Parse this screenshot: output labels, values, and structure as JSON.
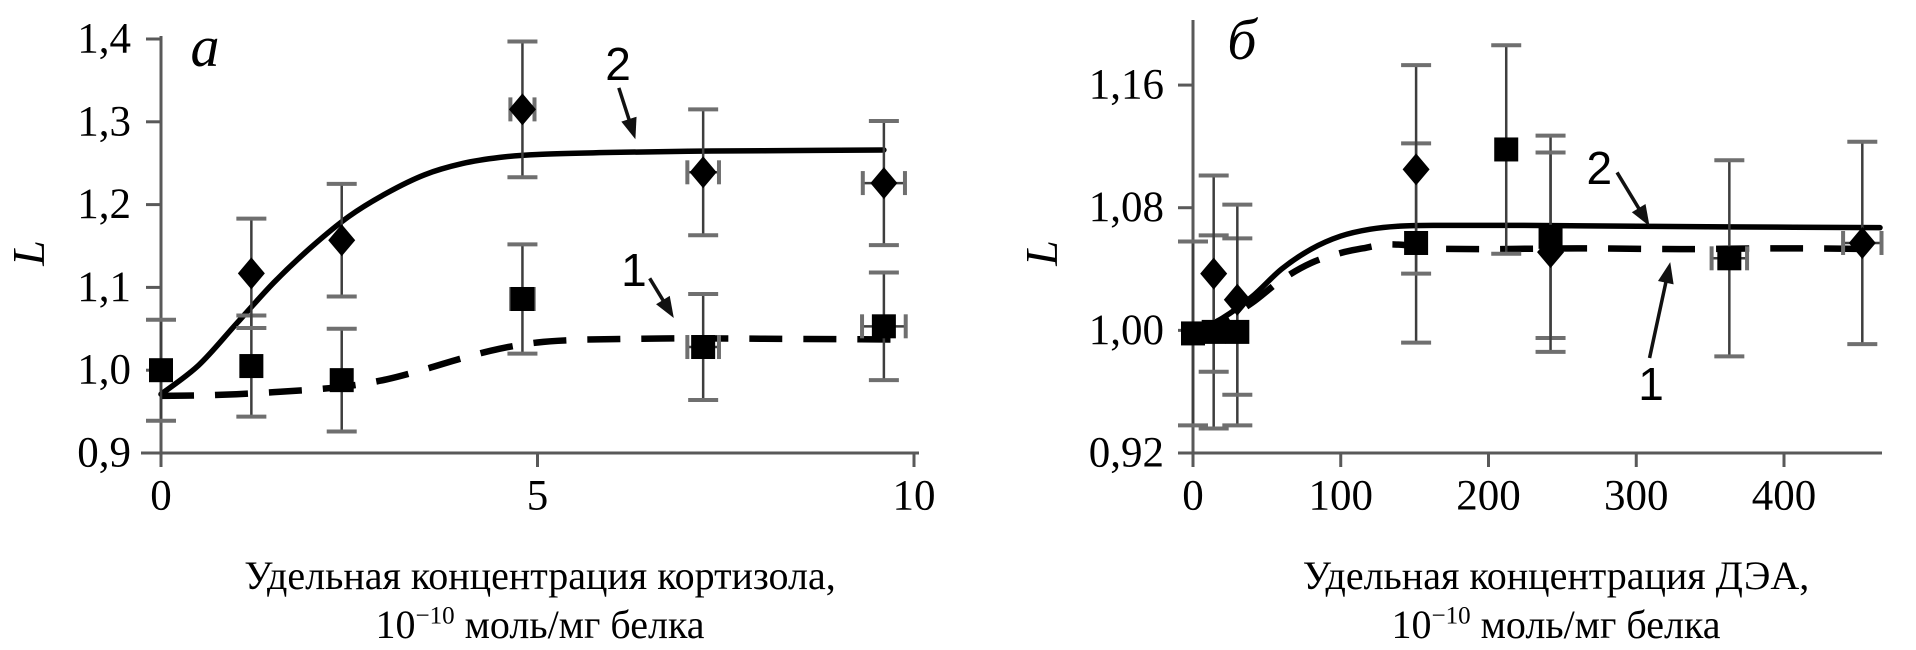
{
  "page": {
    "background": "#ffffff",
    "text_color": "#000000",
    "axis_color": "#595959"
  },
  "chart_data": [
    {
      "panel": "a",
      "type": "scatter",
      "title": "a",
      "ylabel": "L",
      "xlabel_line1": "Удельная концентрация кортизола,",
      "xlabel_unit_base": "10",
      "xlabel_unit_exp": "−10",
      "xlabel_unit_rest": " моль/мг белка",
      "xlim": [
        0,
        10.07
      ],
      "ylim": [
        0.9,
        1.4
      ],
      "xticks": [
        {
          "v": 0,
          "label": "0"
        },
        {
          "v": 5,
          "label": "5"
        },
        {
          "v": 10,
          "label": "10"
        }
      ],
      "yticks": [
        {
          "v": 0.9,
          "label": "0,9"
        },
        {
          "v": 1.0,
          "label": "1,0"
        },
        {
          "v": 1.1,
          "label": "1,1"
        },
        {
          "v": 1.2,
          "label": "1,2"
        },
        {
          "v": 1.3,
          "label": "1,3"
        },
        {
          "v": 1.4,
          "label": "1,4"
        }
      ],
      "series": [
        {
          "name": "1",
          "marker": "square",
          "line": "dashed",
          "points": [
            {
              "x": 0,
              "y": 1.0,
              "ey": 0.061
            },
            {
              "x": 1.2,
              "y": 1.005,
              "ey": 0.061
            },
            {
              "x": 2.4,
              "y": 0.988,
              "ey": 0.062
            },
            {
              "x": 4.8,
              "y": 1.086,
              "ey": 0.066,
              "ex": 0.15
            },
            {
              "x": 7.2,
              "y": 1.028,
              "ey": 0.064,
              "ex": 0.21
            },
            {
              "x": 9.6,
              "y": 1.053,
              "ey": 0.065,
              "ex": 0.29
            }
          ],
          "curve": [
            [
              0,
              0.969
            ],
            [
              0.5,
              0.9695
            ],
            [
              1,
              0.971
            ],
            [
              1.5,
              0.9735
            ],
            [
              2,
              0.9765
            ],
            [
              2.5,
              0.981
            ],
            [
              3,
              0.989
            ],
            [
              3.5,
              1.001
            ],
            [
              4,
              1.0145
            ],
            [
              4.5,
              1.026
            ],
            [
              5,
              1.0335
            ],
            [
              5.5,
              1.0365
            ],
            [
              6,
              1.0375
            ],
            [
              7,
              1.0385
            ],
            [
              8,
              1.038
            ],
            [
              9,
              1.0375
            ],
            [
              9.9,
              1.037
            ]
          ]
        },
        {
          "name": "2",
          "marker": "diamond",
          "line": "solid",
          "points": [
            {
              "x": 1.2,
              "y": 1.117,
              "ey": 0.066
            },
            {
              "x": 2.4,
              "y": 1.157,
              "ey": 0.068
            },
            {
              "x": 4.8,
              "y": 1.315,
              "ey": 0.082,
              "ex": 0.16
            },
            {
              "x": 7.2,
              "y": 1.239,
              "ey": 0.076,
              "ex": 0.21
            },
            {
              "x": 9.6,
              "y": 1.226,
              "ey": 0.075,
              "ex": 0.28
            }
          ],
          "curve": [
            [
              0,
              0.971
            ],
            [
              0.5,
              1.006
            ],
            [
              1,
              1.056
            ],
            [
              1.5,
              1.106
            ],
            [
              2,
              1.149
            ],
            [
              2.5,
              1.186
            ],
            [
              3,
              1.214
            ],
            [
              3.5,
              1.236
            ],
            [
              4,
              1.2495
            ],
            [
              4.5,
              1.257
            ],
            [
              5,
              1.2605
            ],
            [
              6,
              1.263
            ],
            [
              7,
              1.2645
            ],
            [
              8,
              1.265
            ],
            [
              9.6,
              1.266
            ]
          ]
        }
      ],
      "annotations": [
        {
          "text": "2",
          "tx": 6.07,
          "ty": 1.37,
          "ax1": 6.08,
          "ay1": 1.341,
          "ax2": 6.3,
          "ay2": 1.279
        },
        {
          "text": "1",
          "tx": 6.28,
          "ty": 1.121,
          "ax1": 6.49,
          "ay1": 1.111,
          "ax2": 6.81,
          "ay2": 1.063
        }
      ]
    },
    {
      "panel": "б",
      "type": "scatter",
      "title": "б",
      "ylabel": "L",
      "xlabel_line1": "Удельная концентрация ДЭА,",
      "xlabel_unit_base": "10",
      "xlabel_unit_exp": "−10",
      "xlabel_unit_rest": " моль/мг белка",
      "xlim": [
        0,
        466
      ],
      "ylim": [
        0.92,
        1.18
      ],
      "xticks": [
        {
          "v": 0,
          "label": "0"
        },
        {
          "v": 100,
          "label": "100"
        },
        {
          "v": 200,
          "label": "200"
        },
        {
          "v": 300,
          "label": "300"
        },
        {
          "v": 400,
          "label": "400"
        }
      ],
      "yticks": [
        {
          "v": 0.92,
          "label": "0,92"
        },
        {
          "v": 1.0,
          "label": "1,00"
        },
        {
          "v": 1.08,
          "label": "1,08"
        },
        {
          "v": 1.16,
          "label": "1,16"
        }
      ],
      "series": [
        {
          "name": "1",
          "marker": "square",
          "line": "dashed",
          "points": [
            {
              "x": 0,
              "y": 0.998,
              "ey": 0.06
            },
            {
              "x": 14,
              "y": 0.999,
              "ey": 0.063
            },
            {
              "x": 30,
              "y": 0.999,
              "ey": 0.061
            },
            {
              "x": 151,
              "y": 1.057,
              "ey": 0.065
            },
            {
              "x": 212,
              "y": 1.118,
              "ey": 0.068
            },
            {
              "x": 242,
              "y": 1.061,
              "ey": 0.066
            },
            {
              "x": 363,
              "y": 1.047,
              "ey": 0.064,
              "ex": 12
            }
          ],
          "curve": [
            [
              4,
              0.999
            ],
            [
              20,
              1.006
            ],
            [
              40,
              1.018
            ],
            [
              60,
              1.033
            ],
            [
              80,
              1.044
            ],
            [
              100,
              1.0505
            ],
            [
              115,
              1.0535
            ],
            [
              130,
              1.056
            ],
            [
              145,
              1.0555
            ],
            [
              160,
              1.0535
            ],
            [
              200,
              1.053
            ],
            [
              260,
              1.0535
            ],
            [
              330,
              1.053
            ],
            [
              400,
              1.0535
            ],
            [
              462,
              1.053
            ]
          ]
        },
        {
          "name": "2",
          "marker": "diamond",
          "line": "solid",
          "points": [
            {
              "x": 14,
              "y": 1.037,
              "ey": 0.064
            },
            {
              "x": 30,
              "y": 1.02,
              "ey": 0.062
            },
            {
              "x": 151,
              "y": 1.105,
              "ey": 0.068
            },
            {
              "x": 242,
              "y": 1.051,
              "ey": 0.065
            },
            {
              "x": 453,
              "y": 1.057,
              "ey": 0.066,
              "ex": 13
            }
          ],
          "curve": [
            [
              3,
              1.0
            ],
            [
              20,
              1.008
            ],
            [
              40,
              1.022
            ],
            [
              60,
              1.04
            ],
            [
              80,
              1.053
            ],
            [
              100,
              1.0615
            ],
            [
              120,
              1.066
            ],
            [
              140,
              1.068
            ],
            [
              165,
              1.0685
            ],
            [
              220,
              1.0685
            ],
            [
              290,
              1.068
            ],
            [
              360,
              1.0675
            ],
            [
              465,
              1.067
            ]
          ]
        }
      ],
      "annotations": [
        {
          "text": "2",
          "tx": 275,
          "ty": 1.106,
          "ax1": 287,
          "ay1": 1.103,
          "ax2": 309,
          "ay2": 1.068
        },
        {
          "text": "1",
          "tx": 310,
          "ty": 0.965,
          "ax1": 309,
          "ay1": 0.982,
          "ax2": 323,
          "ay2": 1.0445
        }
      ]
    }
  ]
}
